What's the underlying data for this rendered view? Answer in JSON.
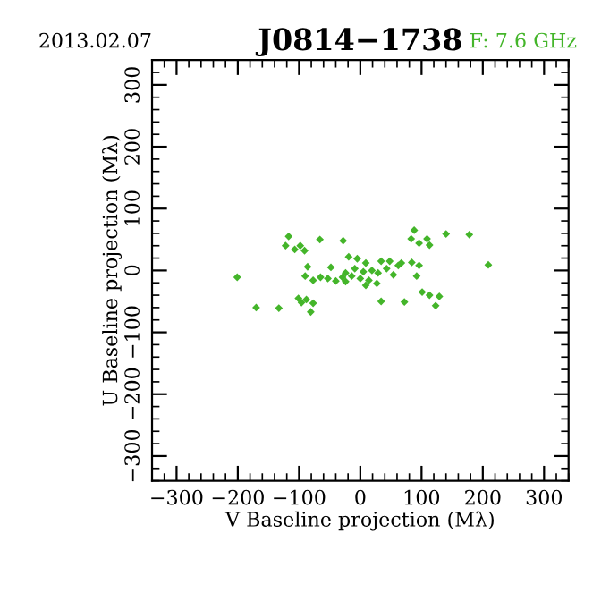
{
  "chart_data": {
    "type": "scatter",
    "title": "J0814−1738",
    "annotations": [
      "2013.02.07",
      "F: 7.6 GHz"
    ],
    "xlabel": "V Baseline projection (Mλ)",
    "ylabel": "U Baseline projection (Mλ)",
    "xlim": [
      -340,
      340
    ],
    "ylim": [
      -340,
      340
    ],
    "xticks": [
      {
        "value": -300,
        "label": "−300"
      },
      {
        "value": -200,
        "label": "−200"
      },
      {
        "value": -100,
        "label": "−100"
      },
      0,
      100,
      200,
      300
    ],
    "yticks": [
      {
        "value": -300,
        "label": "−300"
      },
      {
        "value": -200,
        "label": "−200"
      },
      {
        "value": -100,
        "label": "−100"
      },
      0,
      100,
      200,
      300
    ],
    "grid": false,
    "marker": "diamond",
    "series": [
      {
        "color": "#44b52a",
        "x": [
          -117,
          -122,
          -107,
          -98,
          -91,
          -66,
          -28,
          88,
          83,
          96,
          109,
          113,
          140,
          178,
          209,
          -201,
          -86,
          -48,
          -90,
          -77,
          -65,
          -53,
          -40,
          -29,
          -24,
          -19,
          -5,
          9,
          34,
          48,
          67,
          84,
          62,
          96,
          -9,
          5,
          19,
          29,
          -14,
          0,
          14,
          27,
          9,
          -24,
          43,
          54,
          92,
          101,
          113,
          129,
          123,
          34,
          72,
          -101,
          -88,
          -77,
          -96,
          -170,
          -133,
          -81
        ],
        "values": [
          55,
          40,
          34,
          40,
          32,
          50,
          48,
          65,
          51,
          44,
          51,
          41,
          59,
          58,
          9,
          -11,
          6,
          5,
          -9,
          -16,
          -11,
          -13,
          -17,
          -11,
          -18,
          22,
          19,
          12,
          15,
          15,
          12,
          13,
          8,
          8,
          3,
          -2,
          0,
          -4,
          -9,
          -13,
          -16,
          -21,
          -24,
          -4,
          3,
          -7,
          -9,
          -35,
          -40,
          -42,
          -57,
          -50,
          -51,
          -45,
          -47,
          -53,
          -52,
          -60,
          -61,
          -67
        ]
      }
    ]
  }
}
